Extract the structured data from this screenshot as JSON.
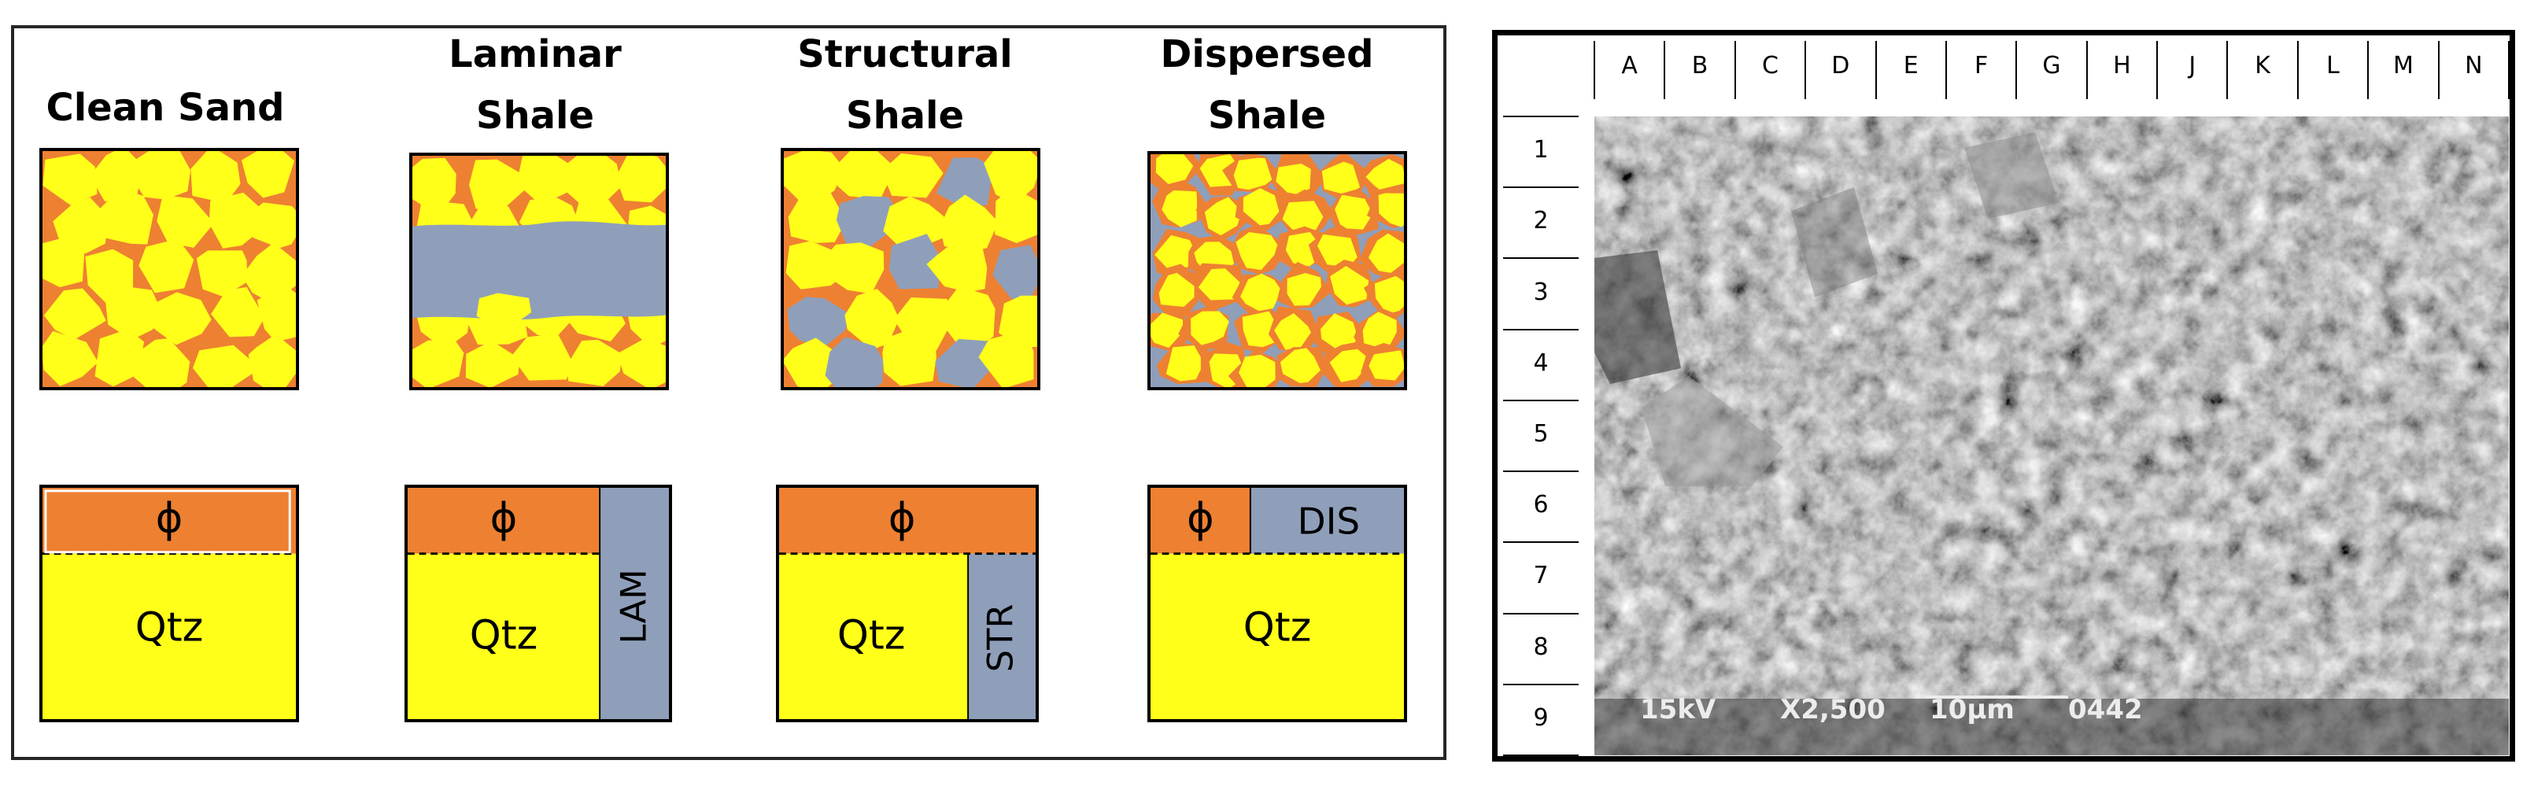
{
  "models": [
    {
      "title_line1": "",
      "title_line2": "Clean Sand",
      "porosity_symbol": "ϕ",
      "matrix_label": "Qtz",
      "shale_label": ""
    },
    {
      "title_line1": "Laminar",
      "title_line2": "Shale",
      "porosity_symbol": "ϕ",
      "matrix_label": "Qtz",
      "shale_label": "LAM"
    },
    {
      "title_line1": "Structural",
      "title_line2": "Shale",
      "porosity_symbol": "ϕ",
      "matrix_label": "Qtz",
      "shale_label": "STR"
    },
    {
      "title_line1": "Dispersed",
      "title_line2": "Shale",
      "porosity_symbol": "ϕ",
      "matrix_label": "Qtz",
      "shale_label": "DIS"
    }
  ],
  "colors": {
    "sand_grain": "#ffff1a",
    "pore": "#ee8032",
    "shale": "#8f9fba",
    "outline": "#000000"
  },
  "sem": {
    "column_labels": [
      "A",
      "B",
      "C",
      "D",
      "E",
      "F",
      "G",
      "H",
      "J",
      "K",
      "L",
      "M",
      "N"
    ],
    "row_labels": [
      "1",
      "2",
      "3",
      "4",
      "5",
      "6",
      "7",
      "8",
      "9"
    ],
    "voltage": "15kV",
    "magnification": "X2,500",
    "scale_bar_label": "10µm",
    "image_number": "0442"
  }
}
